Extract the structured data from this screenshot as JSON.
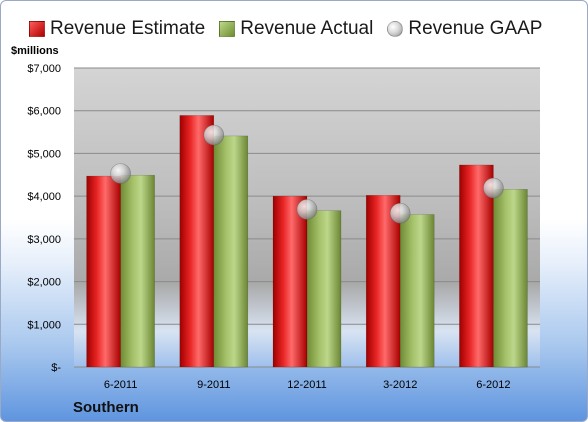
{
  "legend": {
    "estimate": "Revenue Estimate",
    "actual": "Revenue Actual",
    "gaap": "Revenue GAAP"
  },
  "units_label": "$millions",
  "company": "Southern",
  "colors": {
    "estimate": "#d01010",
    "actual": "#8fae52",
    "gaap": "#b8b8b8"
  },
  "chart_data": {
    "type": "bar",
    "categories": [
      "6-2011",
      "9-2011",
      "12-2011",
      "3-2012",
      "6-2012"
    ],
    "series": [
      {
        "name": "Revenue Estimate",
        "values": [
          4470,
          5890,
          4000,
          4020,
          4730
        ]
      },
      {
        "name": "Revenue Actual",
        "values": [
          4490,
          5410,
          3660,
          3570,
          4160
        ]
      },
      {
        "name": "Revenue GAAP",
        "values": [
          4530,
          5430,
          3690,
          3600,
          4190
        ]
      }
    ],
    "yticks": [
      "$-",
      "$1,000",
      "$2,000",
      "$3,000",
      "$4,000",
      "$5,000",
      "$6,000",
      "$7,000"
    ],
    "ylim": [
      0,
      7000
    ],
    "grid": true,
    "legend_position": "top"
  }
}
